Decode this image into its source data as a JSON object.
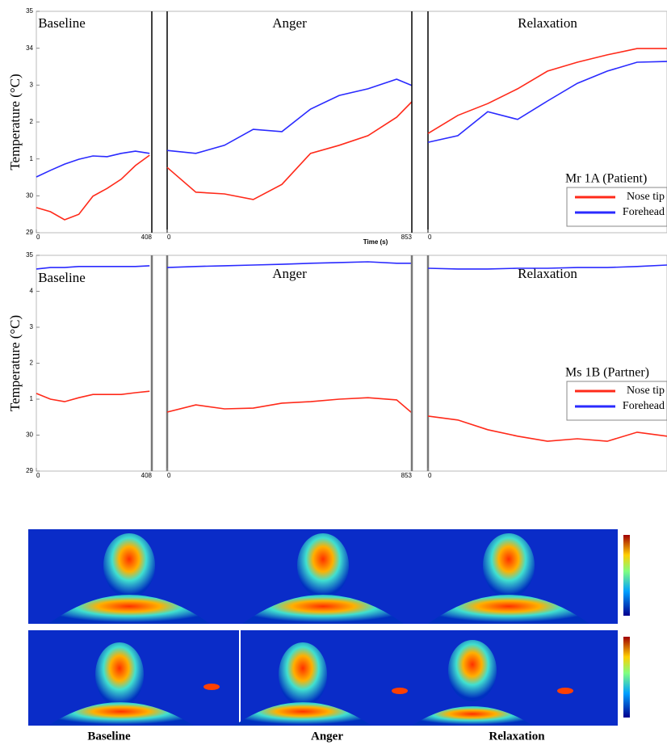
{
  "chart_data": [
    {
      "type": "line",
      "ylabel": "Temperature (°C)",
      "xlabel": "Time (s)",
      "annotation": "Mr 1A (Patient)",
      "ylim": [
        29,
        35
      ],
      "yticks": [
        29,
        30,
        {
          "value": 31,
          "label": "1"
        },
        {
          "value": 32,
          "label": "2"
        },
        {
          "value": 33,
          "label": "3"
        },
        34,
        35
      ],
      "legend": [
        {
          "name": "Nose tip",
          "color": "#ff2a1a"
        },
        {
          "name": "Forehead",
          "color": "#2a2aff"
        }
      ],
      "panels": [
        {
          "title": "Baseline",
          "xlim": [
            0,
            408
          ],
          "xticks": [
            0,
            408
          ],
          "x": [
            0,
            50,
            100,
            150,
            200,
            250,
            300,
            350,
            400
          ],
          "series": [
            {
              "values": [
                29.68,
                29.57,
                29.35,
                29.5,
                29.99,
                30.2,
                30.45,
                30.82,
                31.1
              ]
            },
            {
              "values": [
                30.51,
                30.69,
                30.86,
                30.99,
                31.08,
                31.06,
                31.15,
                31.21,
                31.15
              ]
            }
          ]
        },
        {
          "title": "Anger",
          "xlim": [
            0,
            853
          ],
          "xticks": [
            0,
            853
          ],
          "x": [
            0,
            100,
            200,
            300,
            400,
            500,
            600,
            700,
            800,
            853
          ],
          "series": [
            {
              "values": [
                30.77,
                30.1,
                30.05,
                29.9,
                30.31,
                31.15,
                31.37,
                31.63,
                32.13,
                32.55
              ]
            },
            {
              "values": [
                31.23,
                31.15,
                31.37,
                31.8,
                31.74,
                32.35,
                32.72,
                32.9,
                33.16,
                32.99
              ]
            }
          ]
        },
        {
          "title": "Relaxation",
          "xlim": [
            0,
            800
          ],
          "xticks": [
            0
          ],
          "x": [
            0,
            100,
            200,
            300,
            400,
            500,
            600,
            700,
            800
          ],
          "series": [
            {
              "values": [
                31.69,
                32.18,
                32.5,
                32.9,
                33.38,
                33.62,
                33.82,
                33.99,
                33.99
              ]
            },
            {
              "values": [
                31.45,
                31.63,
                32.28,
                32.07,
                32.57,
                33.05,
                33.38,
                33.62,
                33.64
              ]
            }
          ]
        }
      ]
    },
    {
      "type": "line",
      "ylabel": "Temperature (°C)",
      "annotation": "Ms 1B (Partner)",
      "ylim": [
        29,
        35
      ],
      "yticks": [
        29,
        30,
        {
          "value": 31,
          "label": "1"
        },
        {
          "value": 32,
          "label": "2"
        },
        {
          "value": 33,
          "label": "3"
        },
        {
          "value": 34,
          "label": "4"
        },
        35
      ],
      "legend": [
        {
          "name": "Nose tip",
          "color": "#ff2a1a"
        },
        {
          "name": "Forehead",
          "color": "#2a2aff"
        }
      ],
      "panels": [
        {
          "title": "Baseline",
          "xlim": [
            0,
            408
          ],
          "xticks": [
            0,
            408
          ],
          "x": [
            0,
            50,
            100,
            150,
            200,
            250,
            300,
            350,
            400
          ],
          "series": [
            {
              "values": [
                31.16,
                31.0,
                30.93,
                31.04,
                31.13,
                31.13,
                31.13,
                31.18,
                31.22
              ]
            },
            {
              "values": [
                34.62,
                34.66,
                34.66,
                34.69,
                34.69,
                34.69,
                34.69,
                34.69,
                34.71
              ]
            }
          ]
        },
        {
          "title": "Anger",
          "xlim": [
            0,
            853
          ],
          "xticks": [
            0,
            853
          ],
          "x": [
            0,
            100,
            200,
            300,
            400,
            500,
            600,
            700,
            800,
            853
          ],
          "series": [
            {
              "values": [
                30.64,
                30.84,
                30.73,
                30.75,
                30.89,
                30.93,
                31.0,
                31.04,
                30.98,
                30.62
              ]
            },
            {
              "values": [
                34.66,
                34.69,
                34.71,
                34.73,
                34.75,
                34.78,
                34.8,
                34.82,
                34.78,
                34.78
              ]
            }
          ]
        },
        {
          "title": "Relaxation",
          "xlim": [
            0,
            800
          ],
          "xticks": [
            0
          ],
          "x": [
            0,
            100,
            200,
            300,
            400,
            500,
            600,
            700,
            800
          ],
          "series": [
            {
              "values": [
                30.53,
                30.42,
                30.15,
                29.97,
                29.83,
                29.9,
                29.83,
                30.08,
                29.97
              ]
            },
            {
              "values": [
                34.64,
                34.62,
                34.62,
                34.64,
                34.64,
                34.66,
                34.66,
                34.69,
                34.73
              ]
            }
          ]
        }
      ]
    }
  ],
  "images": {
    "labels": [
      "Baseline",
      "Anger",
      "Relaxation"
    ]
  }
}
